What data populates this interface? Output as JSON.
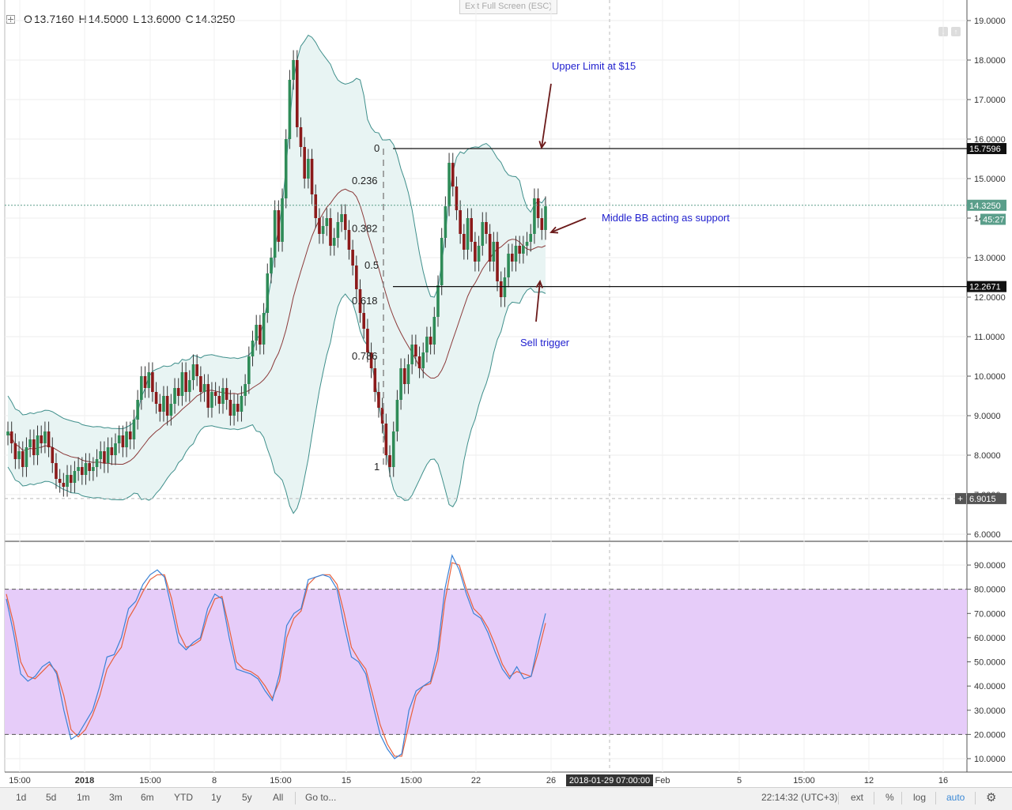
{
  "header": {
    "ohlc": [
      {
        "label": "O",
        "value": "13.7160"
      },
      {
        "label": "H",
        "value": "14.5000"
      },
      {
        "label": "L",
        "value": "13.6000"
      },
      {
        "label": "C",
        "value": "14.3250"
      }
    ],
    "exit_fullscreen": "Exit Full Screen (ESC)"
  },
  "chart_data": [
    {
      "type": "candlestick",
      "price_ticks": [
        "19.0000",
        "18.0000",
        "17.0000",
        "16.0000",
        "15.0000",
        "14.0000",
        "13.0000",
        "12.0000",
        "11.0000",
        "10.0000",
        "9.0000",
        "8.0000",
        "7.0000",
        "6.0000"
      ],
      "ylim": [
        6.0,
        19.0
      ],
      "grid": true,
      "close_series": [
        8.6,
        8.3,
        7.9,
        8.1,
        7.7,
        8.2,
        8.4,
        8.0,
        8.5,
        8.3,
        8.6,
        8.2,
        7.8,
        7.4,
        7.3,
        7.2,
        7.5,
        7.3,
        7.6,
        7.7,
        7.5,
        7.8,
        7.6,
        7.7,
        7.9,
        8.1,
        7.8,
        8.2,
        8.0,
        8.3,
        8.5,
        8.2,
        8.6,
        8.4,
        8.9,
        9.4,
        10.0,
        9.7,
        10.1,
        9.6,
        9.3,
        9.1,
        9.5,
        9.0,
        9.3,
        9.7,
        9.5,
        10.1,
        9.6,
        9.9,
        10.3,
        10.0,
        9.6,
        9.8,
        9.2,
        9.6,
        9.5,
        9.3,
        9.7,
        9.4,
        9.0,
        9.3,
        9.1,
        9.5,
        9.8,
        10.5,
        10.9,
        11.3,
        10.8,
        11.6,
        12.6,
        13.0,
        14.2,
        13.4,
        14.5,
        16.0,
        17.5,
        18.0,
        16.3,
        15.8,
        15.0,
        15.5,
        14.6,
        14.0,
        13.6,
        13.8,
        14.0,
        13.3,
        13.5,
        13.9,
        14.1,
        13.7,
        13.2,
        12.8,
        12.2,
        11.6,
        11.2,
        10.6,
        10.2,
        9.6,
        9.2,
        8.8,
        8.0,
        7.7,
        8.6,
        9.4,
        10.2,
        9.8,
        10.3,
        10.8,
        10.5,
        10.2,
        10.6,
        11.0,
        10.8,
        11.5,
        12.3,
        13.5,
        14.3,
        15.4,
        14.8,
        14.2,
        13.6,
        13.2,
        14.0,
        13.4,
        12.9,
        13.3,
        13.9,
        13.6,
        12.9,
        13.4,
        12.4,
        12.0,
        12.5,
        13.1,
        12.9,
        13.3,
        13.1,
        13.3,
        13.4,
        13.6,
        14.5,
        14.0,
        13.7,
        14.3
      ],
      "lines": [
        {
          "label": "0",
          "price": 15.7596
        },
        {
          "label": "",
          "price": 12.2671
        }
      ],
      "price_labels": [
        {
          "text": "15.7596",
          "price": 15.7596
        },
        {
          "text": "14.3250",
          "price": 14.325
        },
        {
          "text": "45:27",
          "price": 13.97
        },
        {
          "text": "12.2671",
          "price": 12.2671
        },
        {
          "text": "6.9015",
          "price": 6.9015
        }
      ],
      "fib_levels": [
        {
          "label": "0",
          "price": 15.7596
        },
        {
          "label": "0.236",
          "price": 14.94
        },
        {
          "label": "0.382",
          "price": 13.73
        },
        {
          "label": "0.5",
          "price": 12.8
        },
        {
          "label": "0.618",
          "price": 11.9
        },
        {
          "label": "0.786",
          "price": 10.5
        },
        {
          "label": "1",
          "price": 7.7
        }
      ],
      "annotations": [
        {
          "text": "Upper Limit at $15"
        },
        {
          "text": "Middle BB acting as support"
        },
        {
          "text": "Sell trigger"
        }
      ]
    },
    {
      "type": "line",
      "indicator": "stochastic",
      "ylim": [
        5,
        100
      ],
      "y_ticks": [
        "90.0000",
        "80.0000",
        "70.0000",
        "60.0000",
        "50.0000",
        "40.0000",
        "30.0000",
        "20.0000",
        "10.0000"
      ],
      "band": [
        20,
        80
      ],
      "k_values": [
        76,
        62,
        45,
        42,
        44,
        48,
        50,
        45,
        30,
        18,
        20,
        25,
        30,
        40,
        52,
        53,
        60,
        72,
        75,
        82,
        86,
        88,
        85,
        72,
        58,
        55,
        58,
        60,
        72,
        78,
        76,
        60,
        47,
        46,
        45,
        43,
        38,
        34,
        45,
        65,
        70,
        72,
        84,
        85,
        86,
        85,
        80,
        65,
        52,
        50,
        45,
        32,
        20,
        14,
        10,
        12,
        30,
        38,
        40,
        42,
        55,
        80,
        94,
        88,
        78,
        70,
        68,
        62,
        54,
        47,
        43,
        48,
        43,
        44,
        58,
        70
      ],
      "d_values": [
        78,
        66,
        50,
        44,
        43,
        46,
        49,
        46,
        36,
        22,
        19,
        22,
        28,
        36,
        47,
        52,
        56,
        68,
        73,
        79,
        84,
        86,
        86,
        76,
        62,
        56,
        57,
        59,
        69,
        76,
        77,
        64,
        50,
        47,
        46,
        44,
        40,
        35,
        42,
        60,
        68,
        71,
        82,
        85,
        86,
        86,
        82,
        70,
        56,
        51,
        47,
        36,
        24,
        16,
        11,
        11,
        24,
        36,
        40,
        41,
        51,
        75,
        91,
        90,
        80,
        72,
        69,
        64,
        57,
        49,
        44,
        46,
        45,
        44,
        54,
        66
      ]
    }
  ],
  "x_axis": {
    "ticks": [
      "15:00",
      "2018",
      "15:00",
      "8",
      "15:00",
      "15",
      "15:00",
      "22",
      "26",
      "Feb",
      "5",
      "15:00",
      "12",
      "16"
    ],
    "crosshair_label": "2018-01-29 07:00:00"
  },
  "toolbar": {
    "ranges": [
      "1d",
      "5d",
      "1m",
      "3m",
      "6m",
      "YTD",
      "1y",
      "5y",
      "All"
    ],
    "goto": "Go to...",
    "clock": "22:14:32 (UTC+3)",
    "ext": "ext",
    "percent": "%",
    "log": "log",
    "auto": "auto",
    "settings_icon": "gear-icon"
  },
  "colors": {
    "up": "#2e8b57",
    "down": "#8b1a1a",
    "band_edge": "#3f8f8b",
    "band_fill": "#e8f4f3",
    "bb_mid": "#8b3a3a",
    "k_line": "#3b82d6",
    "d_line": "#e8603c",
    "stoch_band": "#e6ccf9",
    "annotation": "#1f1fcf",
    "price_marker_teal": "#5a9e8a"
  }
}
